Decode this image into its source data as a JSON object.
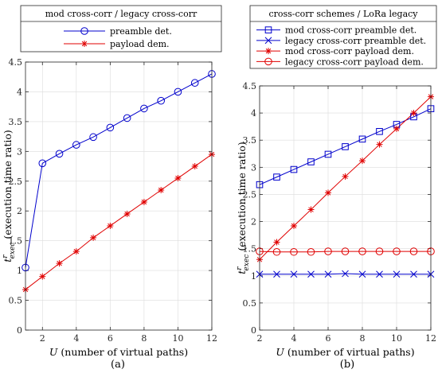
{
  "chart_data": [
    {
      "type": "line",
      "label": "(a)",
      "legend_title": "mod cross-corr / legacy cross-corr",
      "xlabel": "U (number of virtual paths)",
      "ylabel": "t^r_exec (execution time ratio)",
      "xlim": [
        1,
        12
      ],
      "ylim": [
        0,
        4.5
      ],
      "xticks": [
        2,
        4,
        6,
        8,
        10,
        12
      ],
      "yticks": [
        0,
        0.5,
        1,
        1.5,
        2,
        2.5,
        3,
        3.5,
        4,
        4.5
      ],
      "grid": true,
      "legend_position": "top (outside axes)",
      "series": [
        {
          "name": "preamble det.",
          "color": "#0000cc",
          "marker": "circle",
          "x": [
            1,
            2,
            3,
            4,
            5,
            6,
            7,
            8,
            9,
            10,
            11,
            12
          ],
          "y": [
            1.05,
            2.8,
            2.96,
            3.11,
            3.24,
            3.4,
            3.56,
            3.72,
            3.85,
            4.0,
            4.15,
            4.3
          ]
        },
        {
          "name": "payload dem.",
          "color": "#e00000",
          "marker": "asterisk",
          "x": [
            1,
            2,
            3,
            4,
            5,
            6,
            7,
            8,
            9,
            10,
            11,
            12
          ],
          "y": [
            0.68,
            0.9,
            1.12,
            1.32,
            1.55,
            1.75,
            1.95,
            2.15,
            2.35,
            2.55,
            2.75,
            2.95
          ]
        }
      ]
    },
    {
      "type": "line",
      "label": "(b)",
      "legend_title": "cross-corr schemes / LoRa legacy",
      "xlabel": "U (number of virtual paths)",
      "ylabel": "t^r_exec (execution time ratio)",
      "xlim": [
        2,
        12
      ],
      "ylim": [
        0,
        4.5
      ],
      "xticks": [
        2,
        4,
        6,
        8,
        10,
        12
      ],
      "yticks": [
        0,
        0.5,
        1,
        1.5,
        2,
        2.5,
        3,
        3.5,
        4,
        4.5
      ],
      "grid": true,
      "legend_position": "top (outside axes)",
      "series": [
        {
          "name": "mod cross-corr preamble det.",
          "color": "#0000cc",
          "marker": "square",
          "x": [
            2,
            3,
            4,
            5,
            6,
            7,
            8,
            9,
            10,
            11,
            12
          ],
          "y": [
            2.68,
            2.82,
            2.96,
            3.1,
            3.24,
            3.38,
            3.52,
            3.66,
            3.79,
            3.93,
            4.08
          ]
        },
        {
          "name": "legacy cross-corr preamble det.",
          "color": "#0000cc",
          "marker": "x",
          "x": [
            2,
            3,
            4,
            5,
            6,
            7,
            8,
            9,
            10,
            11,
            12
          ],
          "y": [
            1.03,
            1.03,
            1.03,
            1.03,
            1.03,
            1.04,
            1.03,
            1.03,
            1.03,
            1.03,
            1.03
          ]
        },
        {
          "name": "mod cross-corr payload dem.",
          "color": "#e00000",
          "marker": "asterisk",
          "x": [
            2,
            3,
            4,
            5,
            6,
            7,
            8,
            9,
            10,
            11,
            12
          ],
          "y": [
            1.3,
            1.62,
            1.92,
            2.22,
            2.53,
            2.83,
            3.12,
            3.42,
            3.71,
            4.0,
            4.3
          ]
        },
        {
          "name": "legacy cross-corr payload dem.",
          "color": "#e00000",
          "marker": "circle",
          "x": [
            2,
            3,
            4,
            5,
            6,
            7,
            8,
            9,
            10,
            11,
            12
          ],
          "y": [
            1.45,
            1.44,
            1.44,
            1.44,
            1.45,
            1.45,
            1.45,
            1.45,
            1.45,
            1.45,
            1.45
          ]
        }
      ]
    }
  ]
}
